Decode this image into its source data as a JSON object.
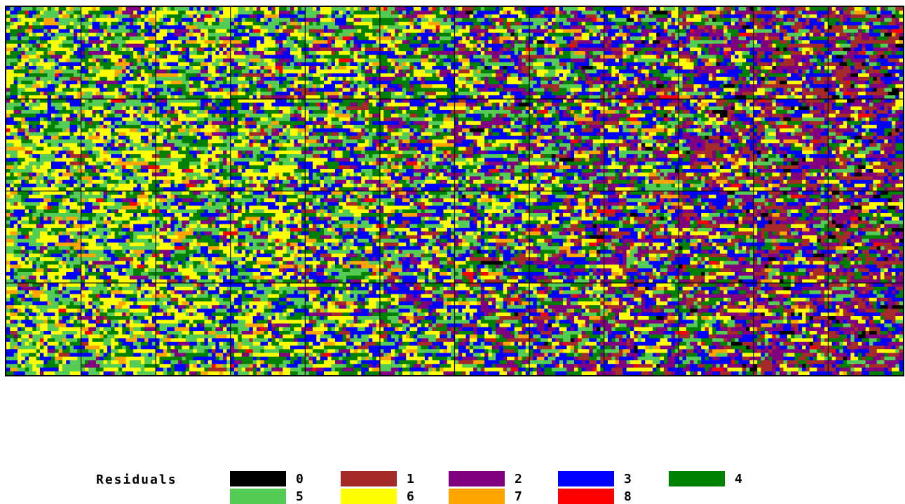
{
  "chart_data": {
    "type": "heatmap",
    "title": "",
    "xlabel": "",
    "ylabel": "",
    "grid": "12 columns x 4 rows of blocks, each block a fine grid of residual classes",
    "block_columns": 12,
    "block_rows": 4,
    "cells_per_block_x": 20,
    "cells_per_block_y": 25,
    "residual_classes": [
      0,
      1,
      2,
      3,
      4,
      5,
      6,
      7,
      8
    ],
    "trend": "Residual class frequencies shift from high classes (5-6, yellow/light green) at the left to low classes (0-2, black/brown/purple) at the right",
    "column_class_weights": [
      [
        0.0,
        0.01,
        0.04,
        0.16,
        0.18,
        0.25,
        0.28,
        0.07,
        0.01
      ],
      [
        0.0,
        0.01,
        0.05,
        0.17,
        0.18,
        0.24,
        0.27,
        0.07,
        0.01
      ],
      [
        0.0,
        0.02,
        0.07,
        0.18,
        0.18,
        0.23,
        0.25,
        0.06,
        0.01
      ],
      [
        0.0,
        0.03,
        0.09,
        0.19,
        0.18,
        0.22,
        0.23,
        0.05,
        0.01
      ],
      [
        0.0,
        0.04,
        0.11,
        0.2,
        0.18,
        0.21,
        0.2,
        0.05,
        0.01
      ],
      [
        0.0,
        0.05,
        0.13,
        0.21,
        0.17,
        0.2,
        0.18,
        0.05,
        0.01
      ],
      [
        0.01,
        0.07,
        0.15,
        0.21,
        0.17,
        0.18,
        0.16,
        0.04,
        0.01
      ],
      [
        0.01,
        0.09,
        0.17,
        0.21,
        0.17,
        0.16,
        0.14,
        0.04,
        0.01
      ],
      [
        0.01,
        0.12,
        0.19,
        0.21,
        0.15,
        0.14,
        0.13,
        0.04,
        0.01
      ],
      [
        0.02,
        0.16,
        0.21,
        0.2,
        0.14,
        0.12,
        0.11,
        0.03,
        0.01
      ],
      [
        0.03,
        0.21,
        0.22,
        0.19,
        0.12,
        0.1,
        0.1,
        0.02,
        0.01
      ],
      [
        0.04,
        0.24,
        0.23,
        0.18,
        0.11,
        0.09,
        0.09,
        0.01,
        0.01
      ]
    ]
  },
  "legend": {
    "title": "Residuals",
    "items": [
      {
        "label": "0",
        "color": "#000000"
      },
      {
        "label": "1",
        "color": "#a52a2a"
      },
      {
        "label": "2",
        "color": "#800080"
      },
      {
        "label": "3",
        "color": "#0000ff"
      },
      {
        "label": "4",
        "color": "#008000"
      },
      {
        "label": "5",
        "color": "#55cc55"
      },
      {
        "label": "6",
        "color": "#ffff00"
      },
      {
        "label": "7",
        "color": "#ffa500"
      },
      {
        "label": "8",
        "color": "#ff0000"
      }
    ]
  }
}
